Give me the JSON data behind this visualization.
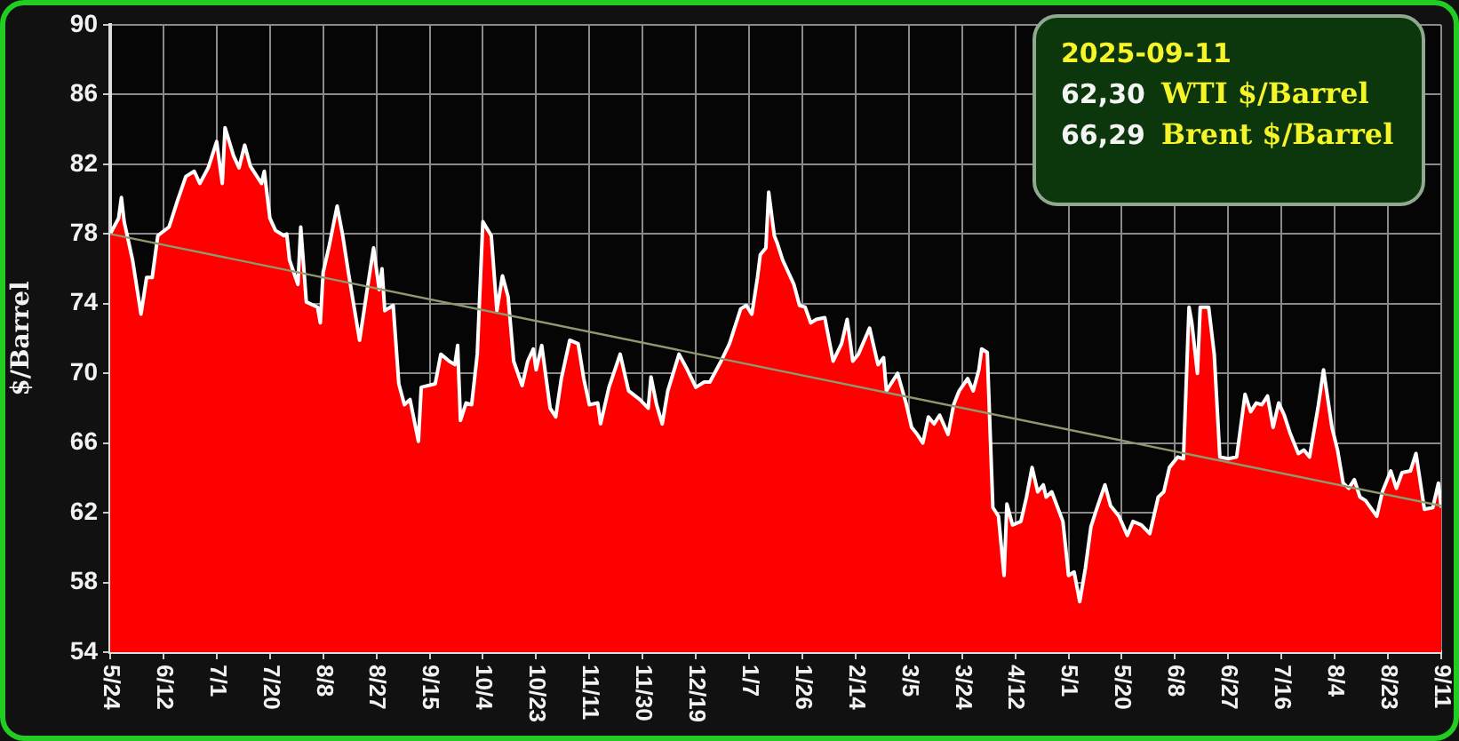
{
  "chart_data": {
    "type": "area",
    "ylabel": "$/Barrel",
    "annotations": [
      "2025-09-11",
      "62,30 WTI $/Barrel",
      "66,29 Brent $/Barrel"
    ],
    "x": [
      "2024-05-24",
      "2024-05-27",
      "2024-05-28",
      "2024-05-29",
      "2024-06-01",
      "2024-06-04",
      "2024-06-06",
      "2024-06-08",
      "2024-06-10",
      "2024-06-14",
      "2024-06-17",
      "2024-06-20",
      "2024-06-23",
      "2024-06-25",
      "2024-06-28",
      "2024-07-01",
      "2024-07-03",
      "2024-07-04",
      "2024-07-07",
      "2024-07-09",
      "2024-07-11",
      "2024-07-13",
      "2024-07-17",
      "2024-07-18",
      "2024-07-20",
      "2024-07-22",
      "2024-07-25",
      "2024-07-26",
      "2024-07-27",
      "2024-07-30",
      "2024-07-31",
      "2024-08-02",
      "2024-08-06",
      "2024-08-07",
      "2024-08-08",
      "2024-08-10",
      "2024-08-13",
      "2024-08-15",
      "2024-08-17",
      "2024-08-21",
      "2024-08-24",
      "2024-08-26",
      "2024-08-28",
      "2024-08-29",
      "2024-08-30",
      "2024-09-02",
      "2024-09-04",
      "2024-09-06",
      "2024-09-08",
      "2024-09-11",
      "2024-09-12",
      "2024-09-17",
      "2024-09-19",
      "2024-09-22",
      "2024-09-24",
      "2024-09-25",
      "2024-09-26",
      "2024-09-28",
      "2024-09-30",
      "2024-10-02",
      "2024-10-04",
      "2024-10-07",
      "2024-10-09",
      "2024-10-11",
      "2024-10-13",
      "2024-10-15",
      "2024-10-18",
      "2024-10-20",
      "2024-10-22",
      "2024-10-23",
      "2024-10-25",
      "2024-10-28",
      "2024-10-30",
      "2024-11-01",
      "2024-11-04",
      "2024-11-07",
      "2024-11-09",
      "2024-11-11",
      "2024-11-14",
      "2024-11-15",
      "2024-11-18",
      "2024-11-22",
      "2024-11-25",
      "2024-11-29",
      "2024-12-02",
      "2024-12-03",
      "2024-12-05",
      "2024-12-07",
      "2024-12-09",
      "2024-12-13",
      "2024-12-16",
      "2024-12-19",
      "2024-12-22",
      "2024-12-24",
      "2024-12-28",
      "2024-12-31",
      "2025-01-04",
      "2025-01-06",
      "2025-01-08",
      "2025-01-10",
      "2025-01-11",
      "2025-01-13",
      "2025-01-14",
      "2025-01-16",
      "2025-01-17",
      "2025-01-19",
      "2025-01-23",
      "2025-01-25",
      "2025-01-27",
      "2025-01-29",
      "2025-01-31",
      "2025-02-03",
      "2025-02-06",
      "2025-02-09",
      "2025-02-11",
      "2025-02-13",
      "2025-02-15",
      "2025-02-19",
      "2025-02-22",
      "2025-02-24",
      "2025-02-25",
      "2025-03-01",
      "2025-03-04",
      "2025-03-06",
      "2025-03-08",
      "2025-03-10",
      "2025-03-12",
      "2025-03-14",
      "2025-03-16",
      "2025-03-19",
      "2025-03-21",
      "2025-03-23",
      "2025-03-26",
      "2025-03-28",
      "2025-03-30",
      "2025-03-31",
      "2025-04-02",
      "2025-04-04",
      "2025-04-06",
      "2025-04-08",
      "2025-04-09",
      "2025-04-11",
      "2025-04-14",
      "2025-04-16",
      "2025-04-18",
      "2025-04-20",
      "2025-04-22",
      "2025-04-23",
      "2025-04-25",
      "2025-04-29",
      "2025-05-01",
      "2025-05-03",
      "2025-05-05",
      "2025-05-07",
      "2025-05-09",
      "2025-05-11",
      "2025-05-14",
      "2025-05-16",
      "2025-05-19",
      "2025-05-22",
      "2025-05-24",
      "2025-05-27",
      "2025-05-30",
      "2025-06-02",
      "2025-06-04",
      "2025-06-06",
      "2025-06-09",
      "2025-06-11",
      "2025-06-13",
      "2025-06-14",
      "2025-06-16",
      "2025-06-17",
      "2025-06-20",
      "2025-06-22",
      "2025-06-24",
      "2025-06-27",
      "2025-06-30",
      "2025-07-03",
      "2025-07-05",
      "2025-07-07",
      "2025-07-09",
      "2025-07-11",
      "2025-07-13",
      "2025-07-15",
      "2025-07-17",
      "2025-07-19",
      "2025-07-22",
      "2025-07-24",
      "2025-07-26",
      "2025-07-29",
      "2025-07-31",
      "2025-08-03",
      "2025-08-05",
      "2025-08-07",
      "2025-08-09",
      "2025-08-11",
      "2025-08-13",
      "2025-08-15",
      "2025-08-19",
      "2025-08-21",
      "2025-08-24",
      "2025-08-26",
      "2025-08-28",
      "2025-08-31",
      "2025-09-02",
      "2025-09-05",
      "2025-09-08",
      "2025-09-10",
      "2025-09-11"
    ],
    "series": [
      {
        "color": "#ff0000",
        "values": [
          78.0,
          78.9,
          80.1,
          78.7,
          76.5,
          73.4,
          75.5,
          75.5,
          77.9,
          78.4,
          79.9,
          81.3,
          81.6,
          80.9,
          81.8,
          83.3,
          80.9,
          84.1,
          82.5,
          81.8,
          83.1,
          81.9,
          80.9,
          81.6,
          78.9,
          78.2,
          77.9,
          78.0,
          76.5,
          75.1,
          78.4,
          74.1,
          73.8,
          72.9,
          75.8,
          77.2,
          79.6,
          77.9,
          75.8,
          71.9,
          75.1,
          77.2,
          74.8,
          76.0,
          73.6,
          73.9,
          69.4,
          68.2,
          68.5,
          66.1,
          69.2,
          69.4,
          71.1,
          70.7,
          70.5,
          71.6,
          67.3,
          68.3,
          68.2,
          71.1,
          78.7,
          77.9,
          73.6,
          75.6,
          74.4,
          70.7,
          69.3,
          70.7,
          71.4,
          70.2,
          71.6,
          68.0,
          67.5,
          69.7,
          71.9,
          71.7,
          69.7,
          68.2,
          68.3,
          67.1,
          69.2,
          71.1,
          69.0,
          68.5,
          68.0,
          69.8,
          68.2,
          67.1,
          69.0,
          71.1,
          70.2,
          69.2,
          69.5,
          69.5,
          70.7,
          71.7,
          73.7,
          73.9,
          73.4,
          75.5,
          76.8,
          77.2,
          80.4,
          77.9,
          77.5,
          76.5,
          75.1,
          73.9,
          73.8,
          72.9,
          73.1,
          73.2,
          70.7,
          71.7,
          73.1,
          70.7,
          71.1,
          72.6,
          70.5,
          70.9,
          69.0,
          70.0,
          68.3,
          66.9,
          66.5,
          66.0,
          67.5,
          67.1,
          67.6,
          66.5,
          68.2,
          69.0,
          69.7,
          69.0,
          70.2,
          71.4,
          71.2,
          62.3,
          61.8,
          58.4,
          62.5,
          61.3,
          61.5,
          62.9,
          64.6,
          63.2,
          63.6,
          62.9,
          63.2,
          61.5,
          58.4,
          58.6,
          56.9,
          58.8,
          61.2,
          62.2,
          63.6,
          62.4,
          61.8,
          60.7,
          61.5,
          61.3,
          60.8,
          62.9,
          63.2,
          64.6,
          65.2,
          65.1,
          73.8,
          72.9,
          70.0,
          73.8,
          73.8,
          71.1,
          65.2,
          65.1,
          65.2,
          68.8,
          67.8,
          68.3,
          68.2,
          68.7,
          66.9,
          68.3,
          67.6,
          66.6,
          65.4,
          65.6,
          65.2,
          68.0,
          70.2,
          66.9,
          65.6,
          63.7,
          63.4,
          63.9,
          62.9,
          62.7,
          61.8,
          63.2,
          64.4,
          63.4,
          64.3,
          64.4,
          65.4,
          62.2,
          62.3,
          63.7,
          62.3
        ]
      },
      {
        "type": "line",
        "color": "#8c9a70",
        "x": [
          "2024-05-24",
          "2025-09-11"
        ],
        "values": [
          78.0,
          62.4
        ]
      }
    ],
    "xlim": [
      "2024-05-24",
      "2025-09-11"
    ],
    "xticks": [
      {
        "value": "2024-05-24",
        "label": "5/24"
      },
      {
        "value": "2024-06-12",
        "label": "6/12"
      },
      {
        "value": "2024-07-01",
        "label": "7/1"
      },
      {
        "value": "2024-07-20",
        "label": "7/20"
      },
      {
        "value": "2024-08-08",
        "label": "8/8"
      },
      {
        "value": "2024-08-27",
        "label": "8/27"
      },
      {
        "value": "2024-09-15",
        "label": "9/15"
      },
      {
        "value": "2024-10-04",
        "label": "10/4"
      },
      {
        "value": "2024-10-23",
        "label": "10/23"
      },
      {
        "value": "2024-11-11",
        "label": "11/11"
      },
      {
        "value": "2024-11-30",
        "label": "11/30"
      },
      {
        "value": "2024-12-19",
        "label": "12/19"
      },
      {
        "value": "2025-01-07",
        "label": "1/7"
      },
      {
        "value": "2025-01-26",
        "label": "1/26"
      },
      {
        "value": "2025-02-14",
        "label": "2/14"
      },
      {
        "value": "2025-03-05",
        "label": "3/5"
      },
      {
        "value": "2025-03-24",
        "label": "3/24"
      },
      {
        "value": "2025-04-12",
        "label": "4/12"
      },
      {
        "value": "2025-05-01",
        "label": "5/1"
      },
      {
        "value": "2025-05-20",
        "label": "5/20"
      },
      {
        "value": "2025-06-08",
        "label": "6/8"
      },
      {
        "value": "2025-06-27",
        "label": "6/27"
      },
      {
        "value": "2025-07-16",
        "label": "7/16"
      },
      {
        "value": "2025-08-04",
        "label": "8/4"
      },
      {
        "value": "2025-08-23",
        "label": "8/23"
      },
      {
        "value": "2025-09-11",
        "label": "9/11"
      }
    ],
    "ylim": [
      54,
      90
    ],
    "yticks": [
      54,
      58,
      62,
      66,
      70,
      74,
      78,
      82,
      86,
      90
    ],
    "grid": true
  }
}
